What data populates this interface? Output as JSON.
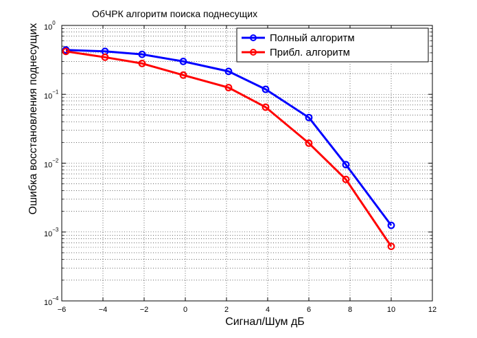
{
  "chart_data": {
    "type": "line",
    "title": "ОбЧРК алгоритм поиска поднесущих",
    "xlabel": "Сигнал/Шум дБ",
    "ylabel": "Ошибка восстановления поднесущих",
    "xlim": [
      -6,
      12
    ],
    "ylim": [
      0.0001,
      1
    ],
    "yscale": "log",
    "grid": true,
    "legend_position": "top-right",
    "x_ticks": [
      "−6",
      "−4",
      "−2",
      "0",
      "2",
      "4",
      "6",
      "8",
      "10",
      "12"
    ],
    "y_ticks": [
      {
        "base": "10",
        "exp": "−4"
      },
      {
        "base": "10",
        "exp": "−3"
      },
      {
        "base": "10",
        "exp": "−2"
      },
      {
        "base": "10",
        "exp": "−1"
      },
      {
        "base": "10",
        "exp": "0"
      }
    ],
    "series": [
      {
        "name": "Полный алгоритм",
        "color": "#0000ff",
        "x": [
          -5.8,
          -3.9,
          -2.1,
          -0.1,
          2.1,
          3.9,
          6,
          7.8,
          10
        ],
        "y": [
          0.44,
          0.42,
          0.38,
          0.3,
          0.215,
          0.118,
          0.046,
          0.0095,
          0.00125
        ]
      },
      {
        "name": "Прибл. алгоритм",
        "color": "#ff0000",
        "x": [
          -5.8,
          -3.9,
          -2.1,
          -0.1,
          2.1,
          3.9,
          6,
          7.8,
          10
        ],
        "y": [
          0.42,
          0.345,
          0.28,
          0.19,
          0.125,
          0.065,
          0.0195,
          0.0058,
          0.00062
        ]
      }
    ]
  }
}
